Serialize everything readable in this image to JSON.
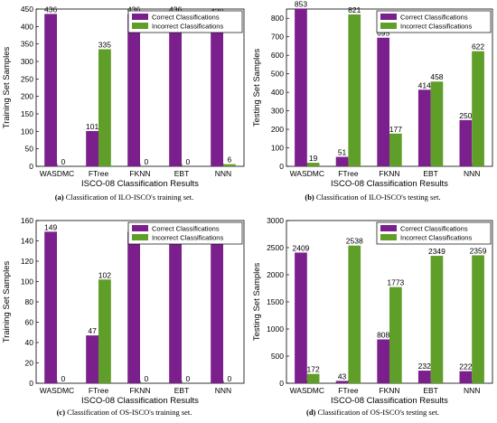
{
  "chart_data": [
    {
      "type": "bar",
      "categories": [
        "WASDMC",
        "FTree",
        "FKNN",
        "EBT",
        "NNN"
      ],
      "series": [
        {
          "name": "Correct Classifications",
          "values": [
            436,
            101,
            436,
            436,
            430
          ],
          "color": "#7b1f8c"
        },
        {
          "name": "Incorrect Classifications",
          "values": [
            0,
            335,
            0,
            0,
            6
          ],
          "color": "#5f9e28"
        }
      ],
      "xlabel": "ISCO-08 Classification Results",
      "ylabel": "Training Set Samples",
      "ylim": [
        0,
        450
      ],
      "yticks": [
        0,
        50,
        100,
        150,
        200,
        250,
        300,
        350,
        400,
        450
      ],
      "legend": "top-right",
      "grid": false,
      "caption_tag": "(a)",
      "caption_text": "Classification of ILO-ISCO's training set."
    },
    {
      "type": "bar",
      "categories": [
        "WASDMC",
        "FTree",
        "FKNN",
        "EBT",
        "NNN"
      ],
      "series": [
        {
          "name": "Correct Classifications",
          "values": [
            853,
            51,
            695,
            414,
            250
          ],
          "color": "#7b1f8c"
        },
        {
          "name": "Incorrect Classifications",
          "values": [
            19,
            821,
            177,
            458,
            622
          ],
          "color": "#5f9e28"
        }
      ],
      "xlabel": "ISCO-08 Classification Results",
      "ylabel": "Testing Set Samples",
      "ylim": [
        0,
        850
      ],
      "yticks": [
        0,
        100,
        200,
        300,
        400,
        500,
        600,
        700,
        800
      ],
      "legend": "top-right",
      "grid": false,
      "caption_tag": "(b)",
      "caption_text": "Classification of ILO-ISCO's testing set."
    },
    {
      "type": "bar",
      "categories": [
        "WASDMC",
        "FTree",
        "FKNN",
        "EBT",
        "NNN"
      ],
      "series": [
        {
          "name": "Correct Classifications",
          "values": [
            149,
            47,
            149,
            149,
            149
          ],
          "color": "#7b1f8c"
        },
        {
          "name": "Incorrect Classifications",
          "values": [
            0,
            102,
            0,
            0,
            0
          ],
          "color": "#5f9e28"
        }
      ],
      "xlabel": "ISCO-08 Classification Results",
      "ylabel": "Training Set Samples",
      "ylim": [
        0,
        160
      ],
      "yticks": [
        0,
        20,
        40,
        60,
        80,
        100,
        120,
        140,
        160
      ],
      "legend": "top-right",
      "grid": false,
      "caption_tag": "(c)",
      "caption_text": "Classification of OS-ISCO's training set."
    },
    {
      "type": "bar",
      "categories": [
        "WASDMC",
        "FTree",
        "FKNN",
        "EBT",
        "NNN"
      ],
      "series": [
        {
          "name": "Correct Classifications",
          "values": [
            2409,
            43,
            808,
            232,
            222
          ],
          "color": "#7b1f8c"
        },
        {
          "name": "Incorrect Classifications",
          "values": [
            172,
            2538,
            1773,
            2349,
            2359
          ],
          "color": "#5f9e28"
        }
      ],
      "xlabel": "ISCO-08 Classification Results",
      "ylabel": "Testing Set Samples",
      "ylim": [
        0,
        3000
      ],
      "yticks": [
        0,
        500,
        1000,
        1500,
        2000,
        2500,
        3000
      ],
      "legend": "top-right",
      "grid": false,
      "caption_tag": "(d)",
      "caption_text": "Classification of OS-ISCO's testing set."
    }
  ]
}
